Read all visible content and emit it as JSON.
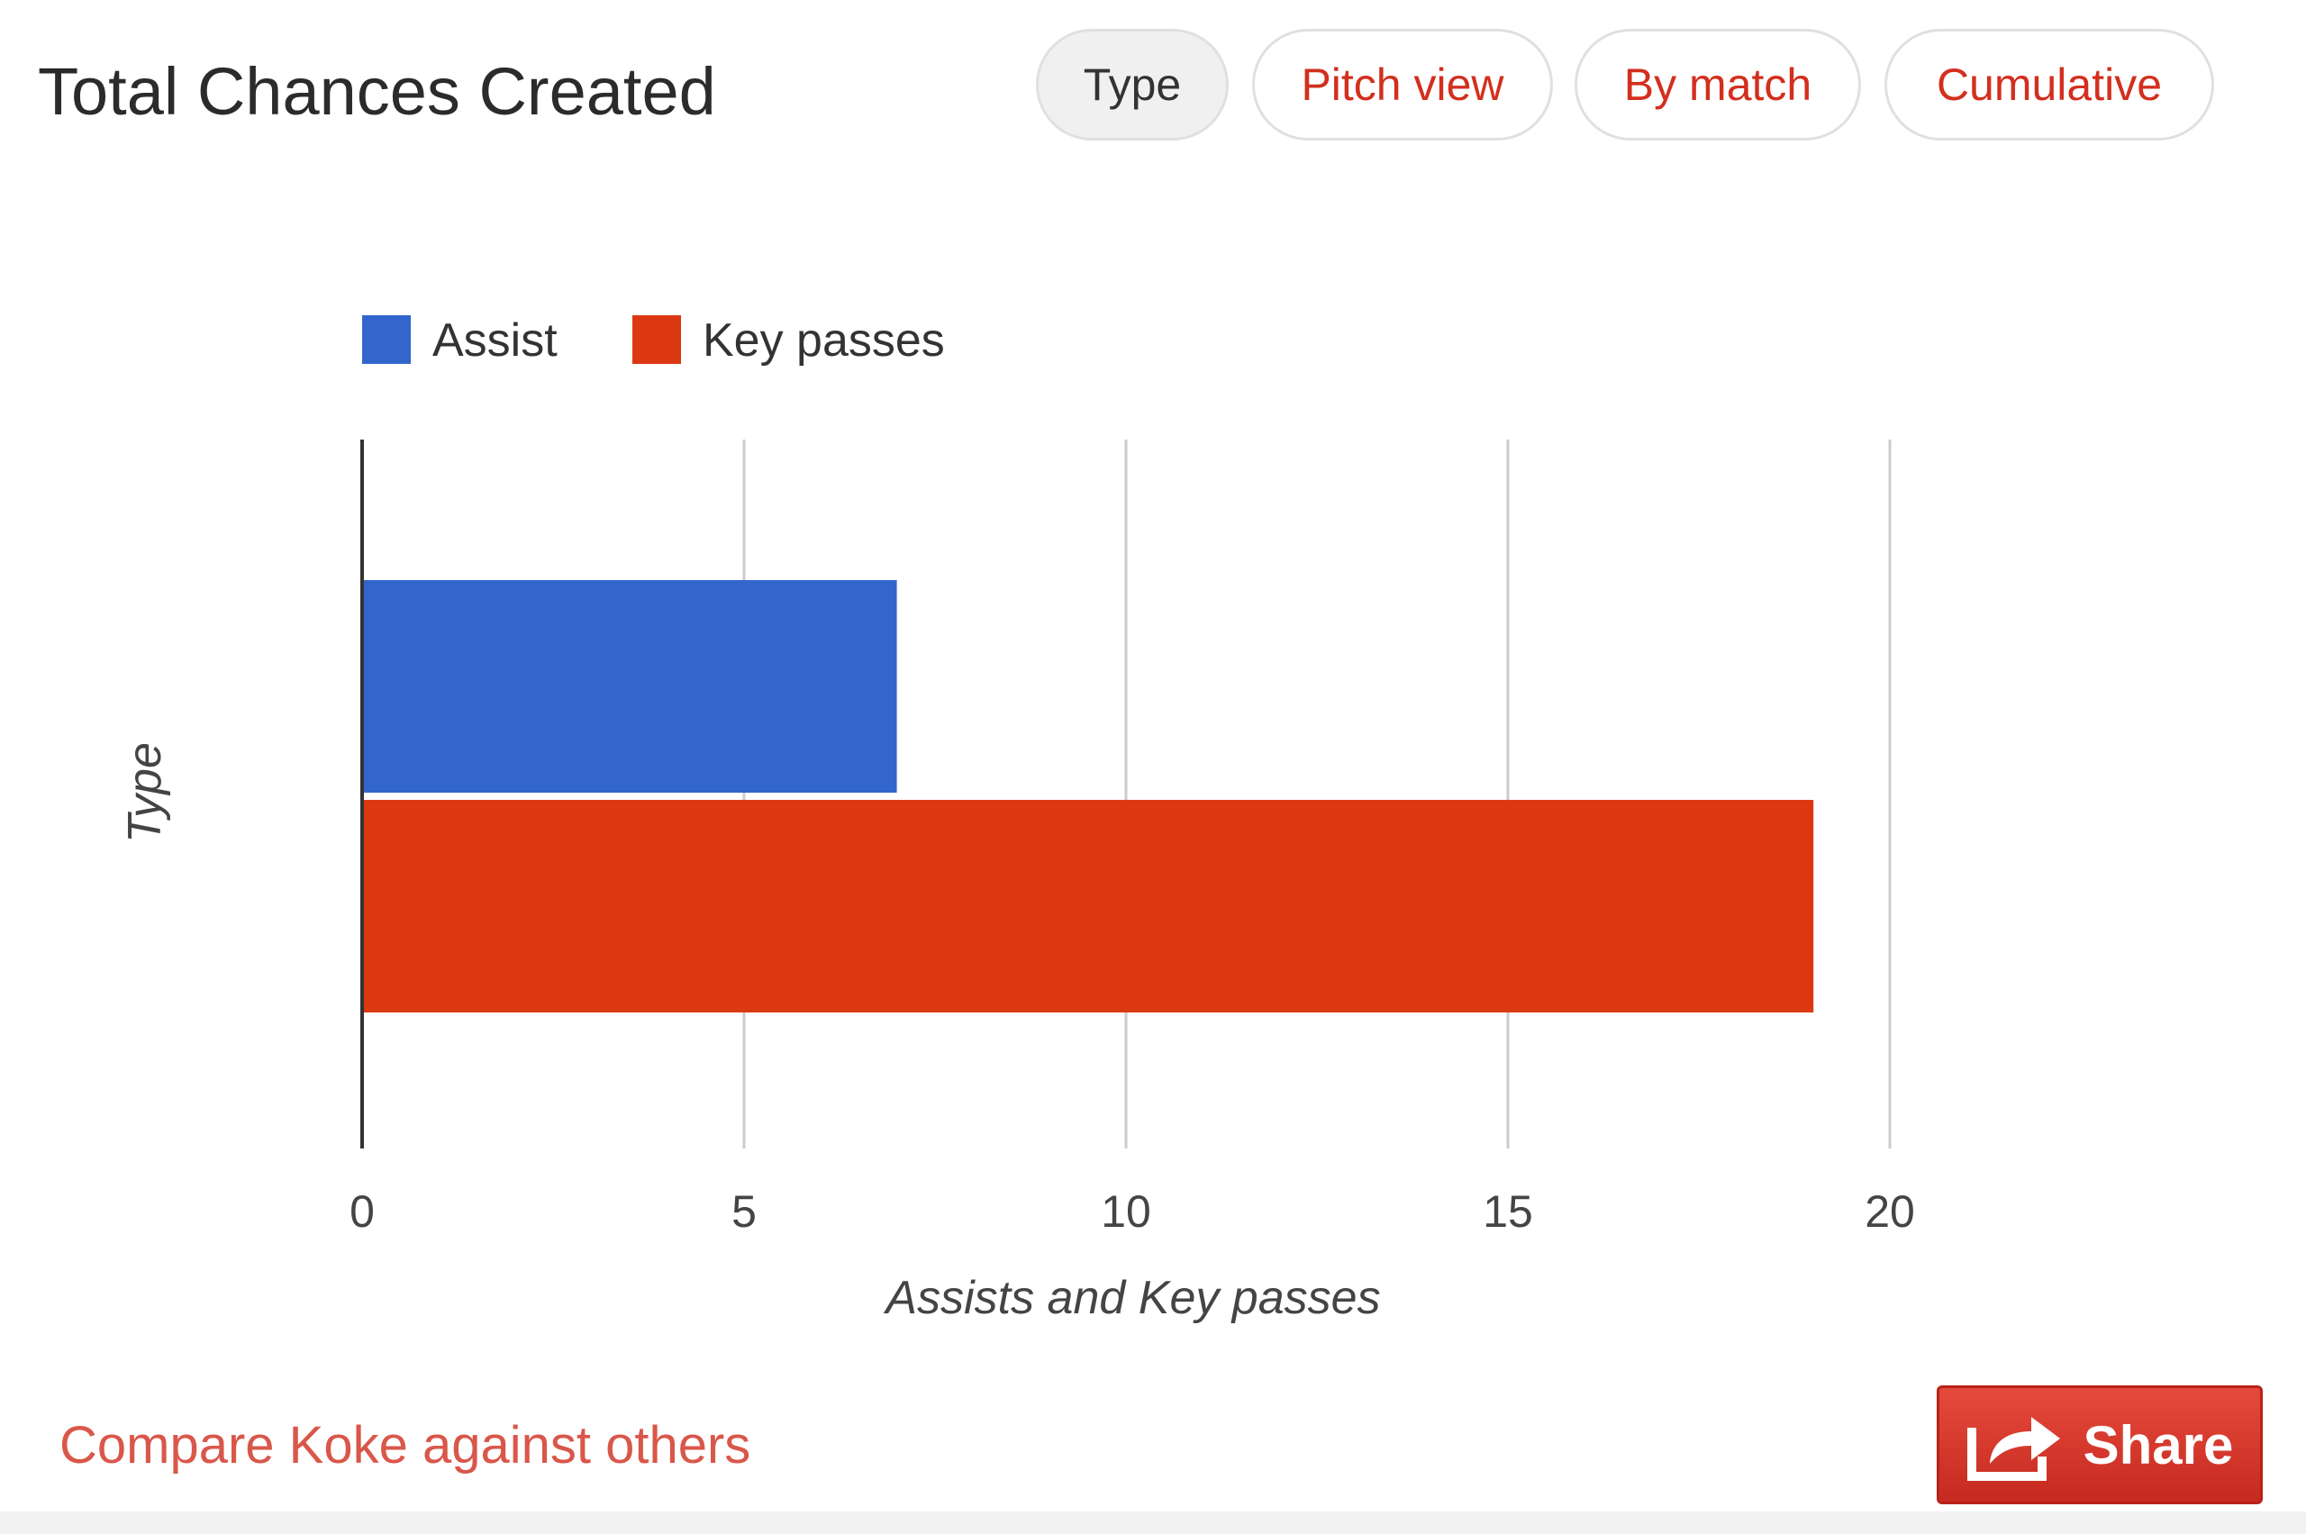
{
  "header": {
    "title": "Total Chances Created",
    "tabs": [
      {
        "label": "Type",
        "active": true
      },
      {
        "label": "Pitch view",
        "active": false
      },
      {
        "label": "By match",
        "active": false
      },
      {
        "label": "Cumulative",
        "active": false
      }
    ]
  },
  "chart_data": {
    "type": "bar",
    "orientation": "horizontal",
    "series": [
      {
        "name": "Assist",
        "value": 7,
        "color": "#3366cc"
      },
      {
        "name": "Key passes",
        "value": 19,
        "color": "#dc3912"
      }
    ],
    "xlabel": "Assists and Key passes",
    "ylabel": "Type",
    "xlim": [
      0,
      20
    ],
    "xticks": [
      "0",
      "5",
      "10",
      "15",
      "20"
    ],
    "grid": true,
    "legend": "top-left"
  },
  "footer": {
    "compare_link": "Compare Koke against others",
    "share_label": "Share"
  },
  "icons": {
    "share": "share-arrow-icon"
  }
}
